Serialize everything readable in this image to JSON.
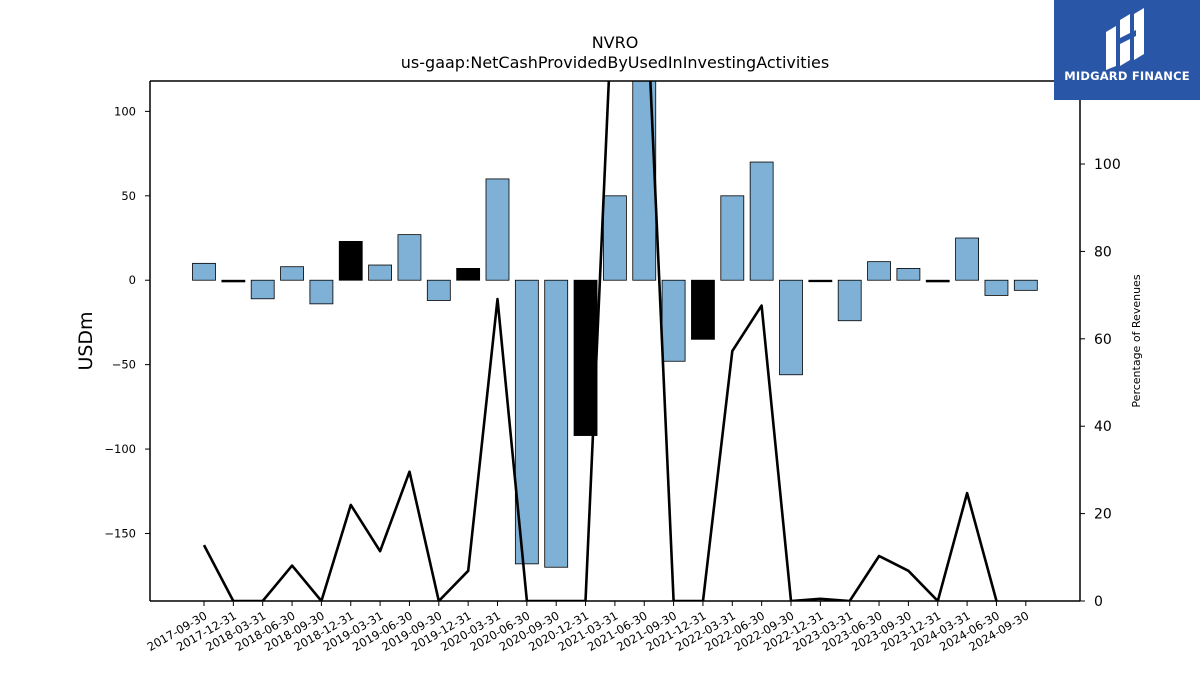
{
  "chart_data": {
    "type": "bar",
    "title": "NVRO",
    "subtitle": "us-gaap:NetCashProvidedByUsedInInvestingActivities",
    "ylabel": "USDm",
    "y2label": "Percentage of Revenues",
    "ylim": [
      -190,
      118
    ],
    "y2lim": [
      0,
      119
    ],
    "yticks": [
      -150,
      -100,
      -50,
      0,
      50,
      100
    ],
    "y2ticks": [
      0,
      20,
      40,
      60,
      80,
      100
    ],
    "categories": [
      "2017-09-30",
      "2017-12-31",
      "2018-03-31",
      "2018-06-30",
      "2018-09-30",
      "2018-12-31",
      "2019-03-31",
      "2019-06-30",
      "2019-09-30",
      "2019-12-31",
      "2020-03-31",
      "2020-06-30",
      "2020-09-30",
      "2020-12-31",
      "2021-03-31",
      "2021-06-30",
      "2021-09-30",
      "2021-12-31",
      "2022-03-31",
      "2022-06-30",
      "2022-09-30",
      "2022-12-31",
      "2023-03-31",
      "2023-06-30",
      "2023-09-30",
      "2023-12-31",
      "2024-03-31",
      "2024-06-30",
      "2024-09-30"
    ],
    "series": [
      {
        "values": [
          10,
          -1,
          -11,
          8,
          -14,
          23,
          9,
          27,
          -12,
          7,
          60,
          -168,
          -170,
          -92,
          50,
          119,
          -48,
          -35,
          50,
          70,
          -56,
          0,
          -24,
          11,
          7,
          -1,
          25,
          -9,
          -6
        ],
        "highlight": [
          false,
          true,
          false,
          false,
          false,
          true,
          false,
          false,
          false,
          true,
          false,
          false,
          false,
          true,
          false,
          false,
          false,
          true,
          false,
          false,
          false,
          true,
          false,
          false,
          false,
          true,
          false,
          false,
          false
        ],
        "colors": {
          "normal": "#7fb0d5",
          "highlight": "#000000"
        }
      },
      {
        "axis": "right",
        "type": "line",
        "values": [
          12.8,
          0,
          0,
          8.1,
          0,
          22.0,
          11.4,
          29.6,
          0,
          6.9,
          69.1,
          0,
          0,
          0,
          150,
          150,
          0,
          0,
          57.2,
          67.6,
          0,
          0.5,
          0,
          10.3,
          6.9,
          0,
          24.7,
          0,
          null
        ]
      }
    ]
  },
  "logo": {
    "name": "MIDGARD FINANCE",
    "color": "#2a56a8"
  }
}
